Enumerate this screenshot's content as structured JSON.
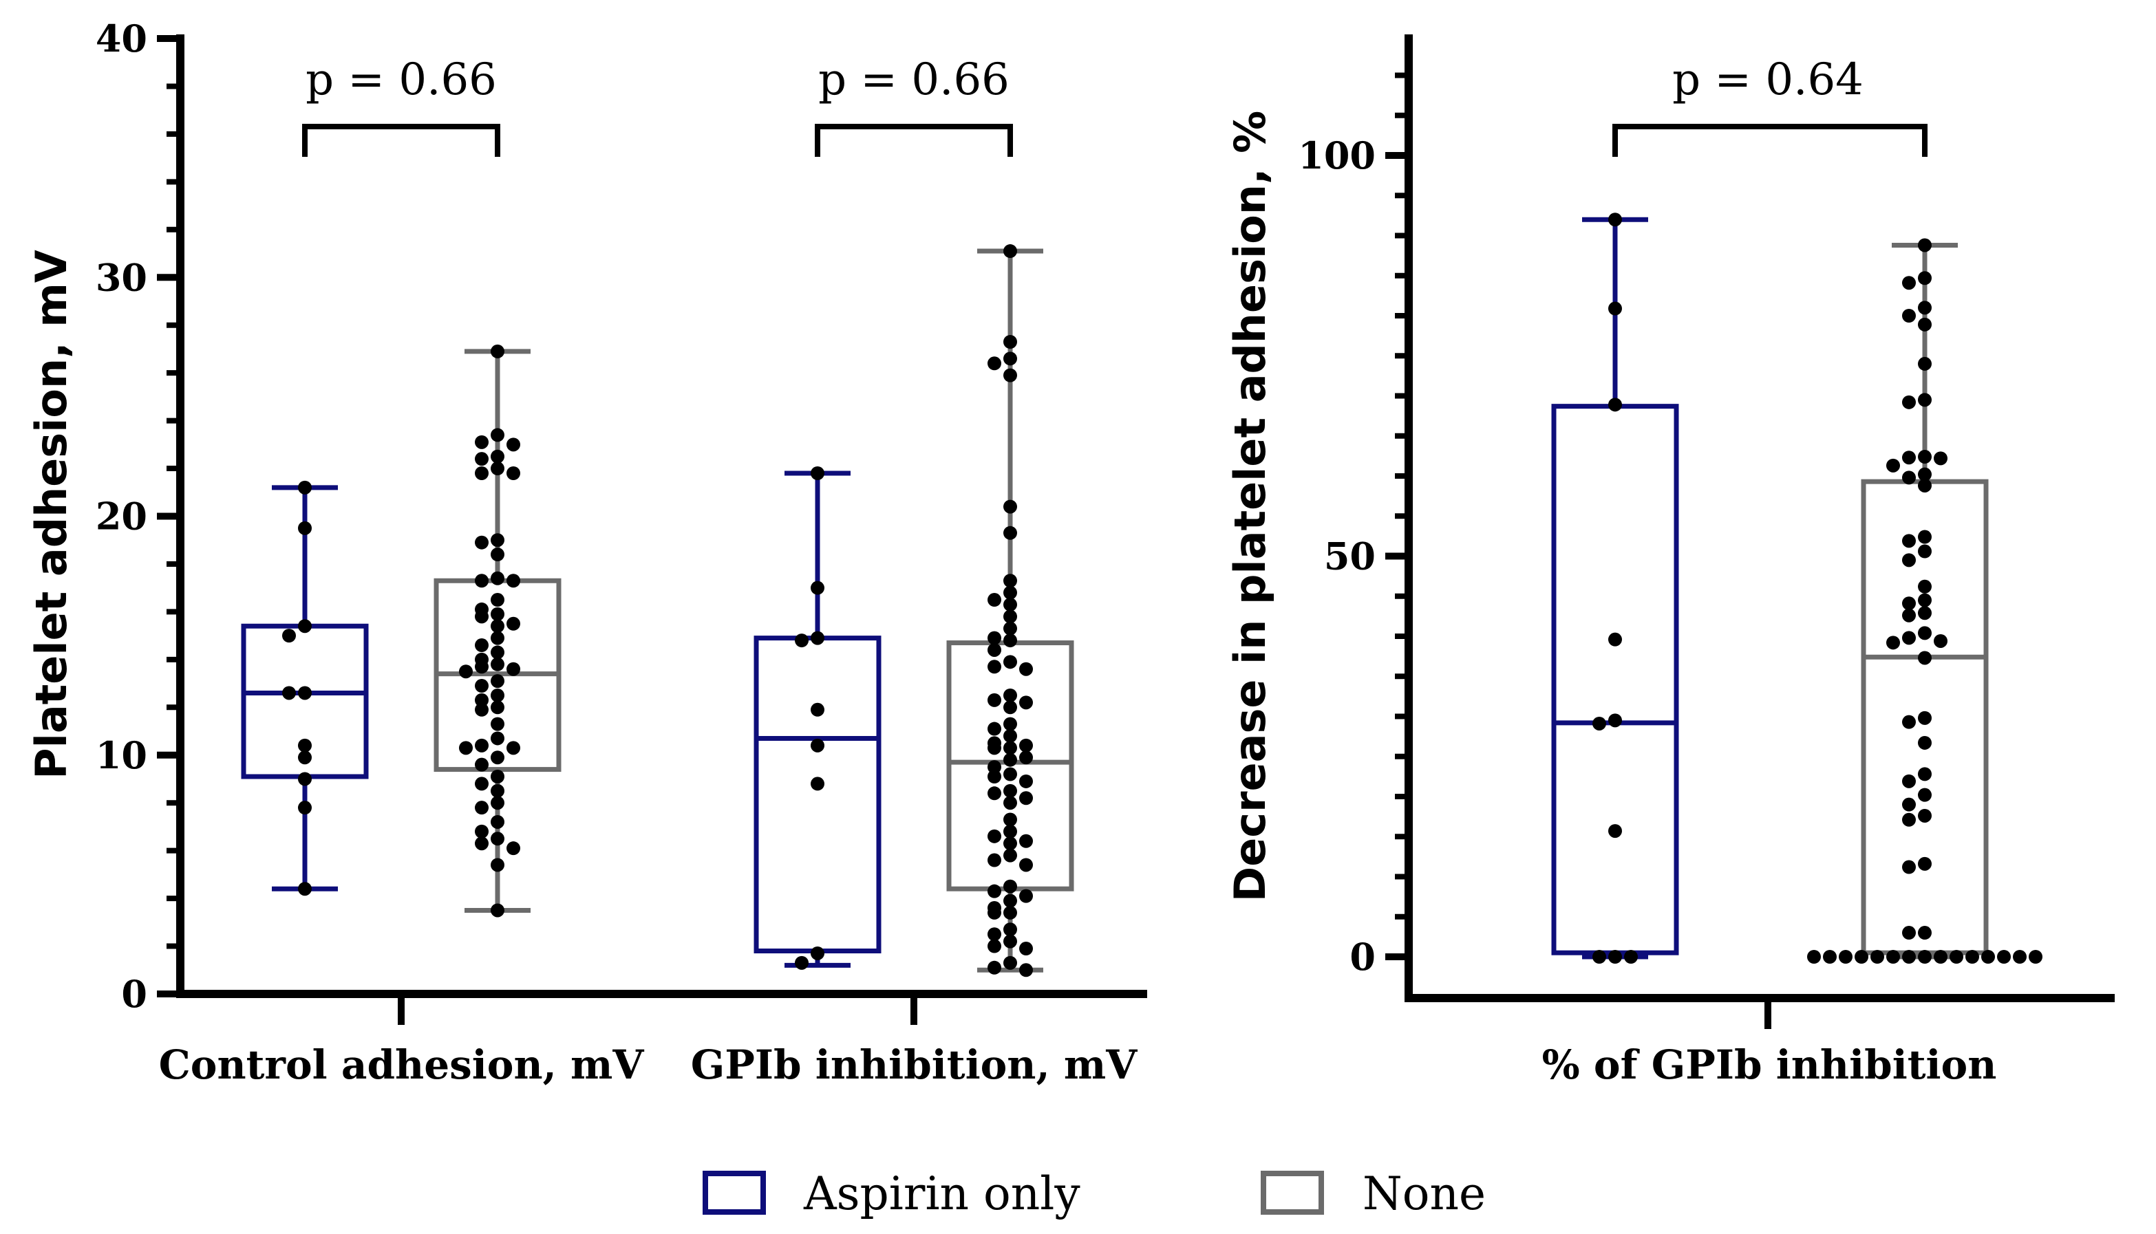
{
  "colors": {
    "aspirin": "#0e0e7a",
    "none": "#6b6b6b",
    "axis": "#000000",
    "point": "#000000"
  },
  "legend": {
    "items": [
      {
        "label": "Aspirin only",
        "color": "#0e0e7a"
      },
      {
        "label": "None",
        "color": "#6b6b6b"
      }
    ]
  },
  "chart_data": [
    {
      "type": "box",
      "ylabel": "Platelet adhesion, mV",
      "ylim": [
        0,
        40
      ],
      "yticks": [
        "0",
        "10",
        "20",
        "30",
        "40"
      ],
      "groups": [
        {
          "label": "Control adhesion, mV",
          "pvalue": "p = 0.66",
          "boxes": [
            {
              "series": "Aspirin only",
              "whisker_low": 4.4,
              "q1": 9.1,
              "median": 12.6,
              "q3": 15.4,
              "whisker_high": 21.2,
              "points": [
                21.2,
                19.5,
                15.4,
                15.0,
                12.6,
                12.6,
                10.4,
                9.9,
                9.0,
                7.8,
                4.4
              ]
            },
            {
              "series": "None",
              "whisker_low": 3.5,
              "q1": 9.4,
              "median": 13.4,
              "q3": 17.3,
              "whisker_high": 26.9,
              "points": [
                26.9,
                23.4,
                23.1,
                23.0,
                22.5,
                22.4,
                22.0,
                21.8,
                21.8,
                19.0,
                18.9,
                18.4,
                17.4,
                17.3,
                17.3,
                16.5,
                16.1,
                15.9,
                15.8,
                15.5,
                15.4,
                14.9,
                14.6,
                14.3,
                14.0,
                13.8,
                13.7,
                13.6,
                13.5,
                13.1,
                12.9,
                12.5,
                12.3,
                12.0,
                11.9,
                11.3,
                10.7,
                10.4,
                10.3,
                10.3,
                9.9,
                9.6,
                9.1,
                8.8,
                8.5,
                8.0,
                7.8,
                7.2,
                6.8,
                6.5,
                6.3,
                6.1,
                5.4,
                3.5
              ]
            }
          ]
        },
        {
          "label": "GPIb inhibition, mV",
          "pvalue": "p = 0.66",
          "boxes": [
            {
              "series": "Aspirin only",
              "whisker_low": 1.2,
              "q1": 1.8,
              "median": 10.7,
              "q3": 14.9,
              "whisker_high": 21.8,
              "points": [
                21.8,
                17.0,
                14.9,
                14.8,
                11.9,
                10.4,
                8.8,
                1.7,
                1.3
              ]
            },
            {
              "series": "None",
              "whisker_low": 1.0,
              "q1": 4.4,
              "median": 9.7,
              "q3": 14.7,
              "whisker_high": 31.1,
              "points": [
                31.1,
                27.3,
                26.6,
                26.4,
                25.9,
                20.4,
                19.3,
                17.3,
                16.8,
                16.5,
                16.3,
                15.8,
                15.3,
                14.9,
                14.8,
                14.4,
                13.9,
                13.7,
                13.6,
                12.5,
                12.3,
                12.2,
                12.0,
                11.3,
                11.1,
                10.8,
                10.5,
                10.4,
                10.3,
                10.3,
                9.9,
                9.8,
                9.5,
                9.2,
                9.1,
                8.9,
                8.5,
                8.4,
                8.2,
                8.0,
                7.3,
                6.8,
                6.6,
                6.4,
                6.3,
                5.8,
                5.6,
                5.4,
                4.5,
                4.3,
                4.1,
                3.9,
                3.6,
                3.4,
                3.4,
                2.7,
                2.5,
                2.2,
                2.0,
                1.9,
                1.3,
                1.1,
                1.0
              ]
            }
          ]
        }
      ]
    },
    {
      "type": "box",
      "ylabel": "Decrease in platelet adhesion, %",
      "ylim": [
        -5,
        115
      ],
      "yticks": [
        "0",
        "50",
        "100"
      ],
      "groups": [
        {
          "label": "% of GPIb inhibition",
          "pvalue": "p = 0.64",
          "boxes": [
            {
              "series": "Aspirin only",
              "whisker_low": 0,
              "q1": 0.5,
              "median": 29.2,
              "q3": 68.7,
              "whisker_high": 92.0,
              "points": [
                92.0,
                80.9,
                68.9,
                39.6,
                29.5,
                29.1,
                15.7,
                0,
                0,
                0
              ]
            },
            {
              "series": "None",
              "whisker_low": 0,
              "q1": 0.5,
              "median": 37.4,
              "q3": 59.3,
              "whisker_high": 88.8,
              "points": [
                88.8,
                84.7,
                84.1,
                81.0,
                80.0,
                78.9,
                74.0,
                69.5,
                69.2,
                62.4,
                62.3,
                62.2,
                61.3,
                60.2,
                59.8,
                58.8,
                52.4,
                51.9,
                50.6,
                49.5,
                46.2,
                44.5,
                44.1,
                42.9,
                42.6,
                40.4,
                39.8,
                39.4,
                39.2,
                37.3,
                29.8,
                29.3,
                26.7,
                22.8,
                21.9,
                20.2,
                19.0,
                17.6,
                17.1,
                11.6,
                11.2,
                3.0,
                3.0,
                0,
                0,
                0,
                0,
                0,
                0,
                0,
                0,
                0,
                0,
                0,
                0,
                0,
                0,
                0
              ]
            }
          ]
        }
      ]
    }
  ]
}
